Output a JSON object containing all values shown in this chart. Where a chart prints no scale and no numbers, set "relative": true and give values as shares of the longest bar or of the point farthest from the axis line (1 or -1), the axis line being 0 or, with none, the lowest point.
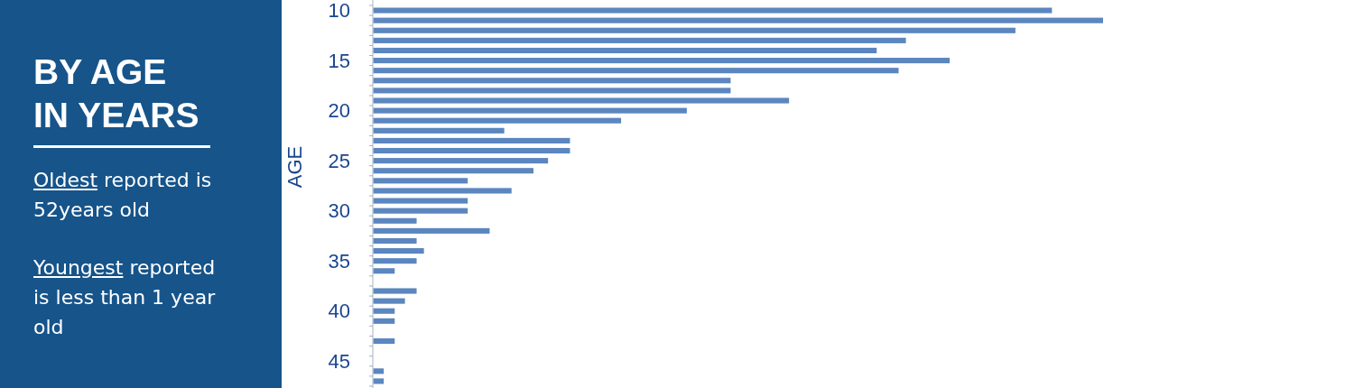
{
  "chart_data": {
    "type": "bar",
    "orientation": "horizontal",
    "relative": true,
    "title": "BY AGE IN YEARS",
    "annotations": [
      "Oldest reported is 52years old",
      "Youngest reported is less than 1 year old"
    ],
    "ylabel": "AGE",
    "categories": [
      "10",
      null,
      null,
      null,
      null,
      "15",
      null,
      null,
      null,
      null,
      "20",
      null,
      null,
      null,
      null,
      "25",
      null,
      null,
      null,
      null,
      "30",
      null,
      null,
      null,
      null,
      "35",
      null,
      null,
      null,
      null,
      "40",
      null,
      null,
      null,
      null,
      "45",
      null,
      null
    ],
    "values": [
      0.93,
      1,
      0.88,
      0.73,
      0.69,
      0.79,
      0.72,
      0.49,
      0.49,
      0.57,
      0.43,
      0.34,
      0.18,
      0.27,
      0.27,
      0.24,
      0.22,
      0.13,
      0.19,
      0.13,
      0.13,
      0.06,
      0.16,
      0.06,
      0.07,
      0.06,
      0.03,
      null,
      0.06,
      0.044,
      0.03,
      0.03,
      null,
      0.03,
      null,
      null,
      0.015,
      0.015
    ],
    "color": "#5b86bf"
  }
}
